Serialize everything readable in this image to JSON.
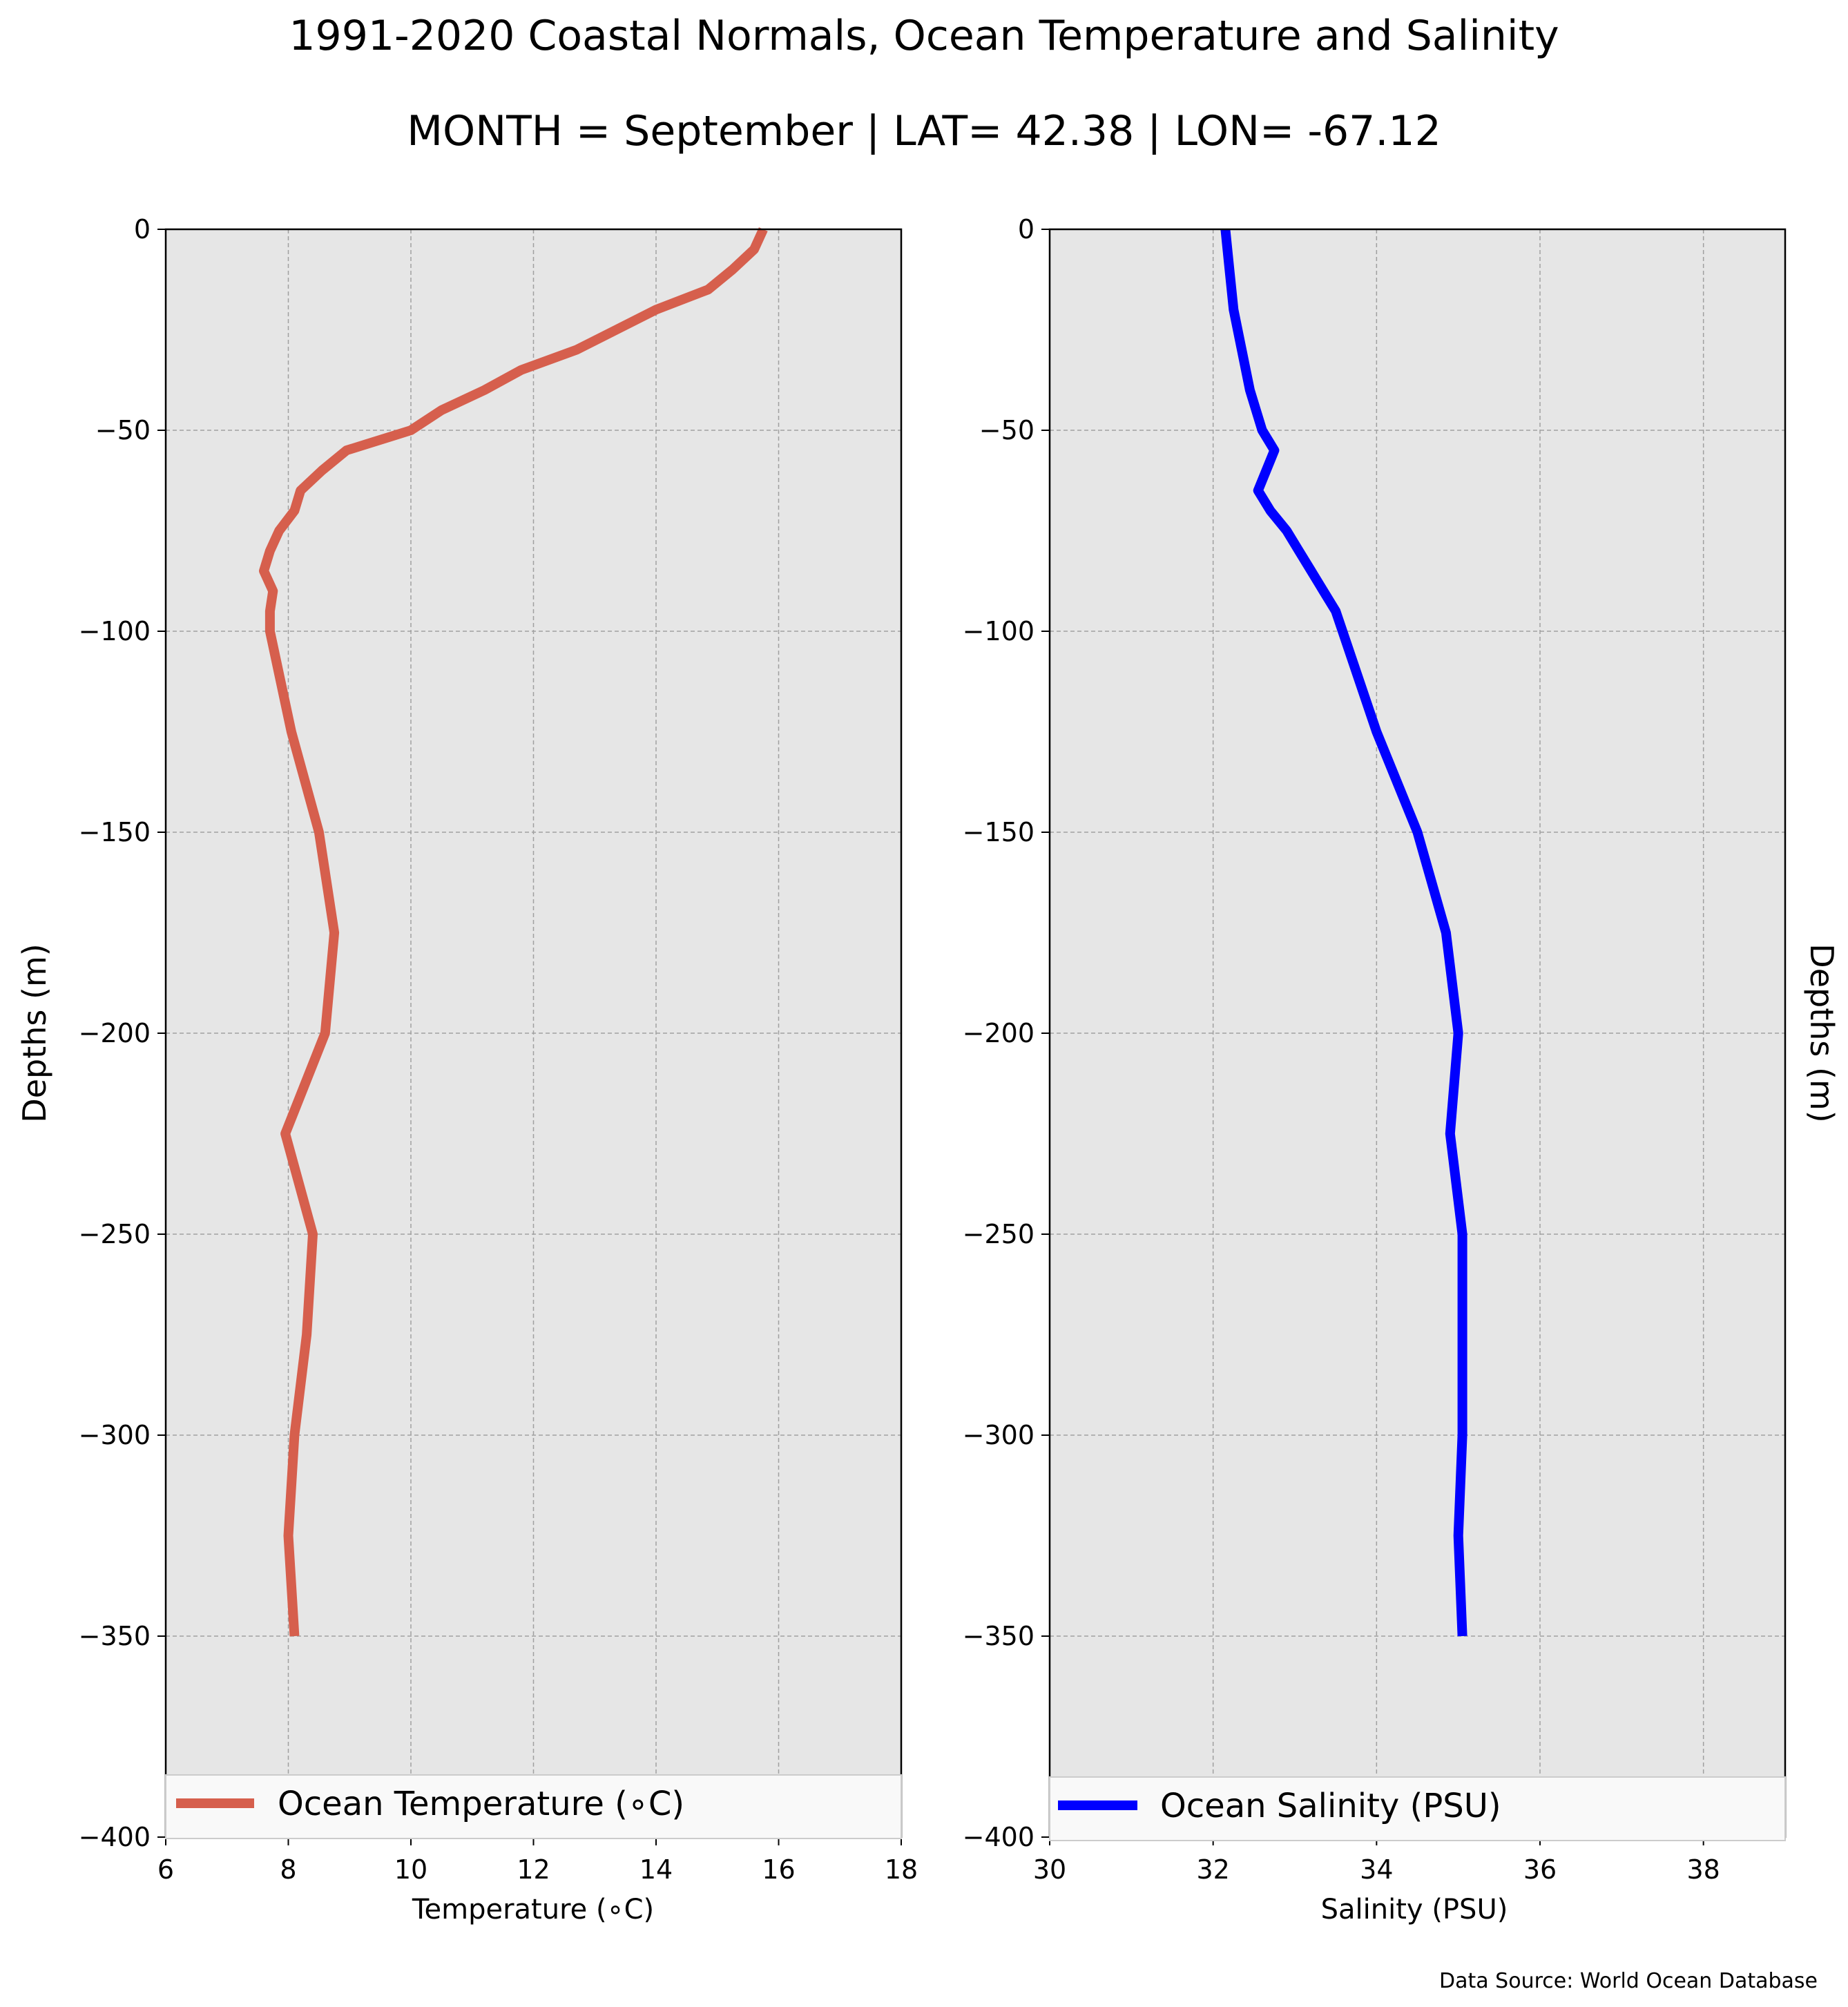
{
  "title_line1": "1991-2020 Coastal Normals, Ocean Temperature and Salinity",
  "title_line2": "MONTH = September | LAT= 42.38 | LON= -67.12",
  "source": "Data Source: World Ocean Database",
  "colors": {
    "temperature": "#d65f4d",
    "salinity": "#0000ff",
    "panel_bg": "#e6e6e6",
    "grid": "#a0a0a0"
  },
  "chart_data": [
    {
      "type": "line",
      "xlabel": "Temperature ($^\\circ$C)",
      "xlabel_display": "Temperature (∘C)",
      "ylabel": "Depths (m)",
      "xlim": [
        6,
        18
      ],
      "ylim": [
        -400,
        0
      ],
      "xticks": [
        "6",
        "8",
        "10",
        "12",
        "14",
        "16",
        "18"
      ],
      "yticks": [
        "0",
        "−50",
        "−100",
        "−150",
        "−200",
        "−250",
        "−300",
        "−350",
        "−400"
      ],
      "grid": true,
      "legend": {
        "placement": "lower center",
        "label": "Ocean Temperature (∘C)"
      },
      "series": [
        {
          "name": "Ocean Temperature (∘C)",
          "x": [
            15.75,
            15.6,
            15.25,
            14.85,
            14.0,
            12.7,
            11.8,
            11.2,
            10.5,
            10.0,
            8.95,
            8.55,
            8.2,
            8.1,
            7.85,
            7.7,
            7.6,
            7.75,
            7.7,
            7.7,
            8.05,
            8.5,
            8.75,
            8.6,
            7.95,
            8.4,
            8.3,
            8.1,
            8.0,
            8.1
          ],
          "y": [
            0,
            -5,
            -10,
            -15,
            -20,
            -30,
            -35,
            -40,
            -45,
            -50,
            -55,
            -60,
            -65,
            -70,
            -75,
            -80,
            -85,
            -90,
            -95,
            -100,
            -125,
            -150,
            -175,
            -200,
            -225,
            -250,
            -275,
            -300,
            -325,
            -350
          ]
        }
      ]
    },
    {
      "type": "line",
      "xlabel": "Salinity (PSU)",
      "ylabel": "Depths (m)",
      "xlim": [
        30,
        39
      ],
      "ylim": [
        -400,
        0
      ],
      "xticks": [
        "30",
        "32",
        "34",
        "36",
        "38"
      ],
      "yticks": [
        "0",
        "−50",
        "−100",
        "−150",
        "−200",
        "−250",
        "−300",
        "−350",
        "−400"
      ],
      "grid": true,
      "legend": {
        "placement": "lower center",
        "label": "Ocean Salinity (PSU)"
      },
      "series": [
        {
          "name": "Ocean Salinity (PSU)",
          "x": [
            32.15,
            32.2,
            32.25,
            32.35,
            32.45,
            32.6,
            32.75,
            32.55,
            32.7,
            32.9,
            33.05,
            33.2,
            33.35,
            33.5,
            34.0,
            34.5,
            34.85,
            35.0,
            34.9,
            35.05,
            35.05,
            35.05,
            35.0,
            35.05
          ],
          "y": [
            0,
            -10,
            -20,
            -30,
            -40,
            -50,
            -55,
            -65,
            -70,
            -75,
            -80,
            -85,
            -90,
            -95,
            -125,
            -150,
            -175,
            -200,
            -225,
            -250,
            -275,
            -300,
            -325,
            -350
          ]
        }
      ]
    }
  ]
}
